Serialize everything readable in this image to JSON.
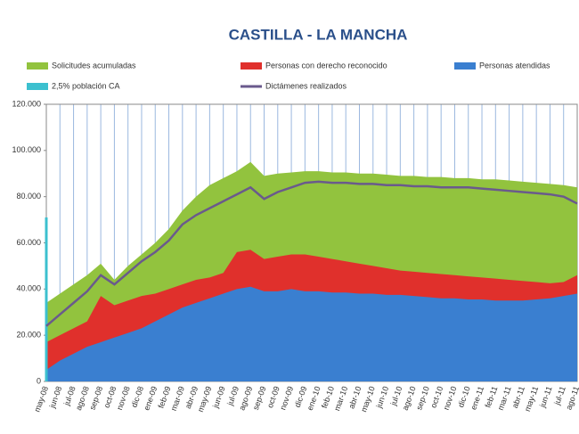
{
  "chart_data": {
    "type": "area",
    "title": "CASTILLA - LA MANCHA",
    "categories": [
      "may-08",
      "jun-08",
      "jul-08",
      "ago-08",
      "sep-08",
      "oct-08",
      "nov-08",
      "dic-08",
      "ene-09",
      "feb-09",
      "mar-09",
      "abr-09",
      "may-09",
      "jun-09",
      "jul-09",
      "ago-09",
      "sep-09",
      "oct-09",
      "nov-09",
      "dic-09",
      "ene-10",
      "feb-10",
      "mar-10",
      "abr-10",
      "may-10",
      "jun-10",
      "jul-10",
      "ago-10",
      "sep-10",
      "oct-10",
      "nov-10",
      "dic-10",
      "ene-11",
      "feb-11",
      "mar-11",
      "abr-11",
      "may-11",
      "jun-11",
      "jul-11",
      "ago-11"
    ],
    "series": [
      {
        "name": "Solicitudes acumuladas",
        "color": "#92c33e",
        "type": "area",
        "values": [
          34000,
          38000,
          42000,
          46000,
          51000,
          44000,
          50000,
          55000,
          60000,
          66000,
          74000,
          80000,
          85000,
          88000,
          91000,
          95000,
          89000,
          90000,
          90500,
          91000,
          91000,
          90500,
          90500,
          90000,
          90000,
          89500,
          89000,
          89000,
          88500,
          88500,
          88000,
          88000,
          87500,
          87500,
          87000,
          86500,
          86000,
          85500,
          85000,
          84000
        ]
      },
      {
        "name": "Personas con derecho reconocido",
        "color": "#e0302c",
        "type": "area",
        "values": [
          17000,
          20000,
          23000,
          26000,
          37000,
          33000,
          35000,
          37000,
          38000,
          40000,
          42000,
          44000,
          45000,
          47000,
          56000,
          57000,
          53000,
          54000,
          55000,
          55000,
          54000,
          53000,
          52000,
          51000,
          50000,
          49000,
          48000,
          47500,
          47000,
          46500,
          46000,
          45500,
          45000,
          44500,
          44000,
          43500,
          43000,
          42500,
          43000,
          46000
        ]
      },
      {
        "name": "Personas atendidas",
        "color": "#3a7fd0",
        "type": "area",
        "values": [
          5000,
          9000,
          12000,
          15000,
          17000,
          19000,
          21000,
          23000,
          26000,
          29000,
          32000,
          34000,
          36000,
          38000,
          40000,
          41000,
          39000,
          39000,
          40000,
          39000,
          39000,
          38500,
          38500,
          38000,
          38000,
          37500,
          37500,
          37000,
          36500,
          36000,
          36000,
          35500,
          35500,
          35000,
          35000,
          35000,
          35500,
          36000,
          37000,
          38000
        ]
      },
      {
        "name": "2,5% población CA",
        "color": "#3cc0cf",
        "type": "bar",
        "values": [
          71000,
          null,
          null,
          null,
          null,
          null,
          null,
          null,
          null,
          null,
          null,
          null,
          null,
          null,
          null,
          null,
          null,
          null,
          null,
          null,
          null,
          null,
          null,
          null,
          null,
          null,
          null,
          null,
          null,
          null,
          null,
          null,
          null,
          null,
          null,
          null,
          null,
          null,
          null,
          null
        ]
      },
      {
        "name": "Dictámenes realizados",
        "color": "#6a5a8c",
        "type": "line",
        "values": [
          24000,
          29000,
          34000,
          39000,
          46000,
          42000,
          47000,
          52000,
          56000,
          61000,
          68000,
          72000,
          75000,
          78000,
          81000,
          84000,
          79000,
          82000,
          84000,
          86000,
          86500,
          86000,
          86000,
          85500,
          85500,
          85000,
          85000,
          84500,
          84500,
          84000,
          84000,
          84000,
          83500,
          83000,
          82500,
          82000,
          81500,
          81000,
          80000,
          77000
        ]
      }
    ],
    "ylim": [
      0,
      120000
    ],
    "yticks": [
      0,
      {
        "value": 20000,
        "label": "20.000"
      },
      {
        "value": 40000,
        "label": "40.000"
      },
      {
        "value": 60000,
        "label": "60.000"
      },
      {
        "value": 80000,
        "label": "80.000"
      },
      {
        "value": 100000,
        "label": "100.000"
      },
      {
        "value": 120000,
        "label": "120.000"
      }
    ],
    "grid": true
  }
}
